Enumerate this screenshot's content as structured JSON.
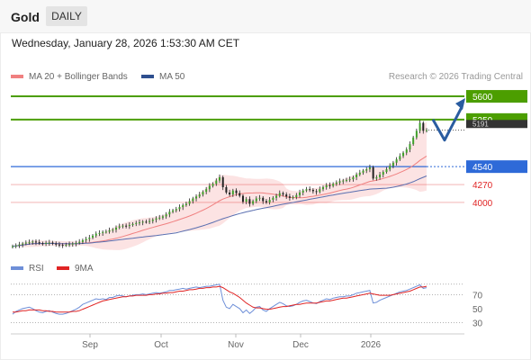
{
  "header": {
    "instrument": "Gold",
    "period": "DAILY"
  },
  "date_line": "Wednesday, January 28, 2026 1:53:30 AM CET",
  "legend": {
    "bb": "MA 20 + Bollinger Bands",
    "ma50": "MA 50",
    "credit": "Research © 2026 Trading Central",
    "rsi": "RSI",
    "rsi_ma": "9MA"
  },
  "colors": {
    "resistance": "#4c9e00",
    "support_blue": "#2e6ad8",
    "support_red": "#e02424",
    "bb_fill": "#fbdada",
    "ma20": "#f08080",
    "ma50": "#5a6fb0",
    "pivot_label_dark": "#333333",
    "arrow": "#2a5ca0",
    "rsi_line": "#6e8fd8",
    "rsi_ma": "#e02424"
  },
  "chart_data": [
    {
      "type": "line",
      "subtype": "candlestick",
      "x_labels": [
        "Sep",
        "Oct",
        "Nov",
        "Dec",
        "2026"
      ],
      "ylim": [
        3280,
        5750
      ],
      "levels": [
        {
          "value": 5600,
          "label": "5600",
          "kind": "resistance"
        },
        {
          "value": 5250,
          "label": "5250",
          "kind": "resistance"
        },
        {
          "value": 5190,
          "label": "5191",
          "kind": "pivot"
        },
        {
          "value": 4540,
          "label": "4540",
          "kind": "pivot_support"
        },
        {
          "value": 4270,
          "label": "4270",
          "kind": "support"
        },
        {
          "value": 4000,
          "label": "4000",
          "kind": "support"
        }
      ],
      "forecast_path": [
        5250,
        4940,
        5600
      ],
      "closes": [
        3340,
        3350,
        3365,
        3380,
        3395,
        3400,
        3410,
        3400,
        3385,
        3380,
        3390,
        3395,
        3380,
        3365,
        3360,
        3355,
        3360,
        3370,
        3380,
        3390,
        3405,
        3430,
        3450,
        3470,
        3500,
        3530,
        3540,
        3555,
        3560,
        3580,
        3590,
        3620,
        3640,
        3650,
        3645,
        3660,
        3675,
        3690,
        3700,
        3710,
        3705,
        3720,
        3740,
        3760,
        3770,
        3790,
        3820,
        3860,
        3880,
        3900,
        3930,
        3960,
        3980,
        4020,
        4060,
        4090,
        4120,
        4160,
        4200,
        4250,
        4280,
        4330,
        4380,
        4230,
        4150,
        4120,
        4180,
        4140,
        4100,
        4010,
        4050,
        3980,
        4020,
        4060,
        4070,
        4020,
        4000,
        4040,
        4070,
        4100,
        4140,
        4120,
        4090,
        4070,
        4080,
        4110,
        4150,
        4180,
        4200,
        4190,
        4170,
        4160,
        4200,
        4230,
        4260,
        4250,
        4280,
        4300,
        4320,
        4330,
        4340,
        4350,
        4380,
        4420,
        4450,
        4480,
        4500,
        4530,
        4360,
        4380,
        4420,
        4460,
        4500,
        4550,
        4600,
        4650,
        4700,
        4750,
        4800,
        4880,
        4980,
        5080,
        5200,
        5080,
        5090
      ],
      "ma20_last": 4900,
      "ma50_last": 4600,
      "rsi_ticks": [
        70,
        50,
        30
      ],
      "rsi_ylim": [
        15,
        95
      ],
      "rsi": [
        42,
        46,
        48,
        50,
        51,
        52,
        50,
        47,
        45,
        44,
        46,
        47,
        45,
        43,
        42,
        42,
        43,
        45,
        47,
        49,
        52,
        56,
        58,
        60,
        62,
        64,
        63,
        64,
        63,
        66,
        66,
        68,
        69,
        68,
        67,
        68,
        69,
        70,
        70,
        71,
        70,
        71,
        72,
        73,
        72,
        73,
        74,
        76,
        76,
        77,
        78,
        79,
        78,
        79,
        80,
        81,
        80,
        81,
        82,
        82,
        83,
        84,
        85,
        62,
        52,
        50,
        56,
        53,
        50,
        44,
        48,
        43,
        47,
        52,
        53,
        48,
        46,
        50,
        53,
        56,
        59,
        57,
        54,
        53,
        54,
        56,
        59,
        61,
        62,
        60,
        58,
        57,
        60,
        62,
        64,
        63,
        65,
        66,
        67,
        67,
        68,
        68,
        70,
        72,
        73,
        74,
        75,
        76,
        58,
        59,
        62,
        64,
        66,
        68,
        70,
        72,
        74,
        75,
        76,
        78,
        80,
        82,
        84,
        79,
        80
      ],
      "rsi_ma9": [
        45,
        45,
        46,
        47,
        47,
        48,
        48,
        48,
        48,
        47,
        47,
        46,
        46,
        45,
        45,
        45,
        45,
        45,
        46,
        46,
        47,
        49,
        51,
        53,
        55,
        57,
        59,
        61,
        62,
        63,
        64,
        65,
        66,
        67,
        67,
        68,
        68,
        69,
        69,
        69,
        69,
        70,
        70,
        71,
        71,
        72,
        72,
        73,
        73,
        74,
        75,
        75,
        76,
        77,
        77,
        78,
        79,
        79,
        80,
        80,
        81,
        81,
        82,
        80,
        77,
        74,
        72,
        69,
        66,
        62,
        58,
        55,
        52,
        51,
        51,
        50,
        49,
        49,
        50,
        51,
        52,
        53,
        53,
        54,
        55,
        56,
        56,
        57,
        58,
        58,
        58,
        58,
        59,
        60,
        61,
        61,
        62,
        63,
        64,
        65,
        65,
        66,
        67,
        68,
        69,
        70,
        71,
        72,
        71,
        70,
        69,
        69,
        69,
        69,
        70,
        71,
        72,
        73,
        74,
        75,
        77,
        79,
        81,
        81,
        82
      ]
    }
  ]
}
